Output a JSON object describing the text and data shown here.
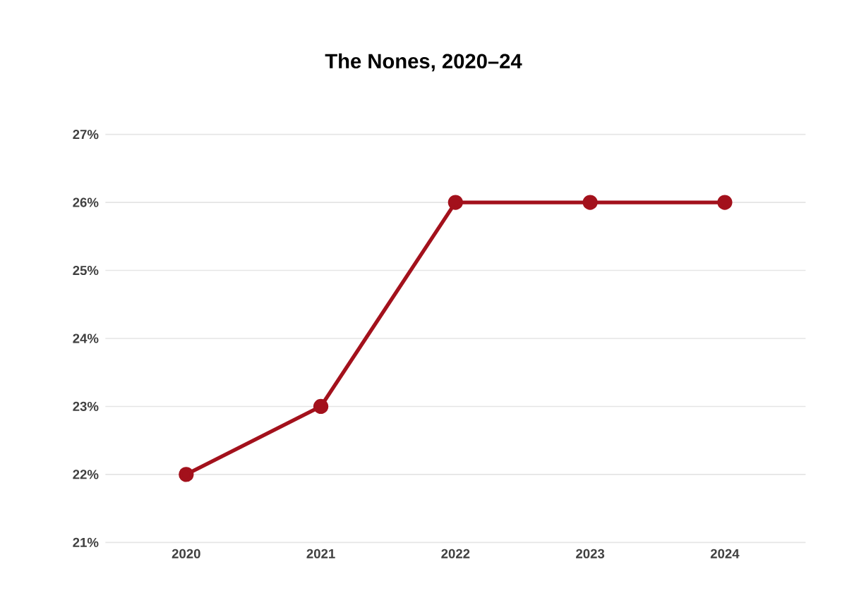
{
  "chart_data": {
    "type": "line",
    "title": "The Nones, 2020–24",
    "categories": [
      "2020",
      "2021",
      "2022",
      "2023",
      "2024"
    ],
    "series": [
      {
        "color": "#a3111c",
        "values": [
          22,
          23,
          26,
          26,
          26
        ]
      }
    ],
    "ylim": [
      21,
      27
    ],
    "yticks": [
      {
        "value": 21,
        "label": "21%"
      },
      {
        "value": 22,
        "label": "22%"
      },
      {
        "value": 23,
        "label": "23%"
      },
      {
        "value": 24,
        "label": "24%"
      },
      {
        "value": 25,
        "label": "25%"
      },
      {
        "value": 26,
        "label": "26%"
      },
      {
        "value": 27,
        "label": "27%"
      }
    ],
    "grid": "y",
    "legend": false,
    "marker": "circle",
    "line_style": "solid"
  }
}
